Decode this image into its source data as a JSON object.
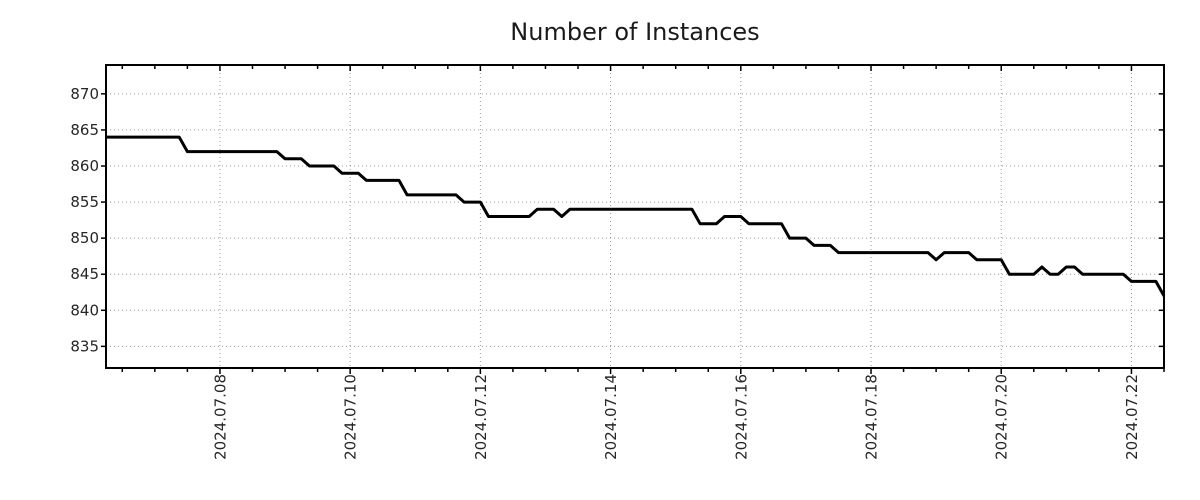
{
  "title": "Number of Instances",
  "chart_data": {
    "type": "line",
    "title": "Number of Instances",
    "xlabel": "",
    "ylabel": "",
    "x_start": "2024-07-06 06:00",
    "x_end": "2024-07-22 12:00",
    "x_step_hours": 3,
    "x_minor_tick_hours": 12,
    "ylim": [
      832,
      874
    ],
    "y_ticks": [
      835,
      840,
      845,
      850,
      855,
      860,
      865,
      870
    ],
    "x_major_ticks": [
      {
        "label": "2024.07.08",
        "index": 14
      },
      {
        "label": "2024.07.10",
        "index": 30
      },
      {
        "label": "2024.07.12",
        "index": 46
      },
      {
        "label": "2024.07.14",
        "index": 62
      },
      {
        "label": "2024.07.16",
        "index": 78
      },
      {
        "label": "2024.07.18",
        "index": 94
      },
      {
        "label": "2024.07.20",
        "index": 110
      },
      {
        "label": "2024.07.22",
        "index": 126
      }
    ],
    "grid": true,
    "legend": "none",
    "colors": {
      "line": "#000000",
      "grid": "#999999",
      "border": "#000000",
      "tick_label": "#262626",
      "title": "#1a1a1a",
      "background": "#ffffff"
    },
    "values": [
      864,
      864,
      864,
      864,
      864,
      864,
      864,
      864,
      864,
      864,
      862,
      862,
      862,
      862,
      862,
      862,
      862,
      862,
      862,
      862,
      862,
      862,
      861,
      861,
      861,
      860,
      860,
      860,
      860,
      859,
      859,
      859,
      858,
      858,
      858,
      858,
      858,
      856,
      856,
      856,
      856,
      856,
      856,
      856,
      855,
      855,
      855,
      853,
      853,
      853,
      853,
      853,
      853,
      854,
      854,
      854,
      853,
      854,
      854,
      854,
      854,
      854,
      854,
      854,
      854,
      854,
      854,
      854,
      854,
      854,
      854,
      854,
      854,
      852,
      852,
      852,
      853,
      853,
      853,
      852,
      852,
      852,
      852,
      852,
      850,
      850,
      850,
      849,
      849,
      849,
      848,
      848,
      848,
      848,
      848,
      848,
      848,
      848,
      848,
      848,
      848,
      848,
      847,
      848,
      848,
      848,
      848,
      847,
      847,
      847,
      847,
      845,
      845,
      845,
      845,
      846,
      845,
      845,
      846,
      846,
      845,
      845,
      845,
      845,
      845,
      845,
      844,
      844,
      844,
      844,
      842
    ]
  }
}
